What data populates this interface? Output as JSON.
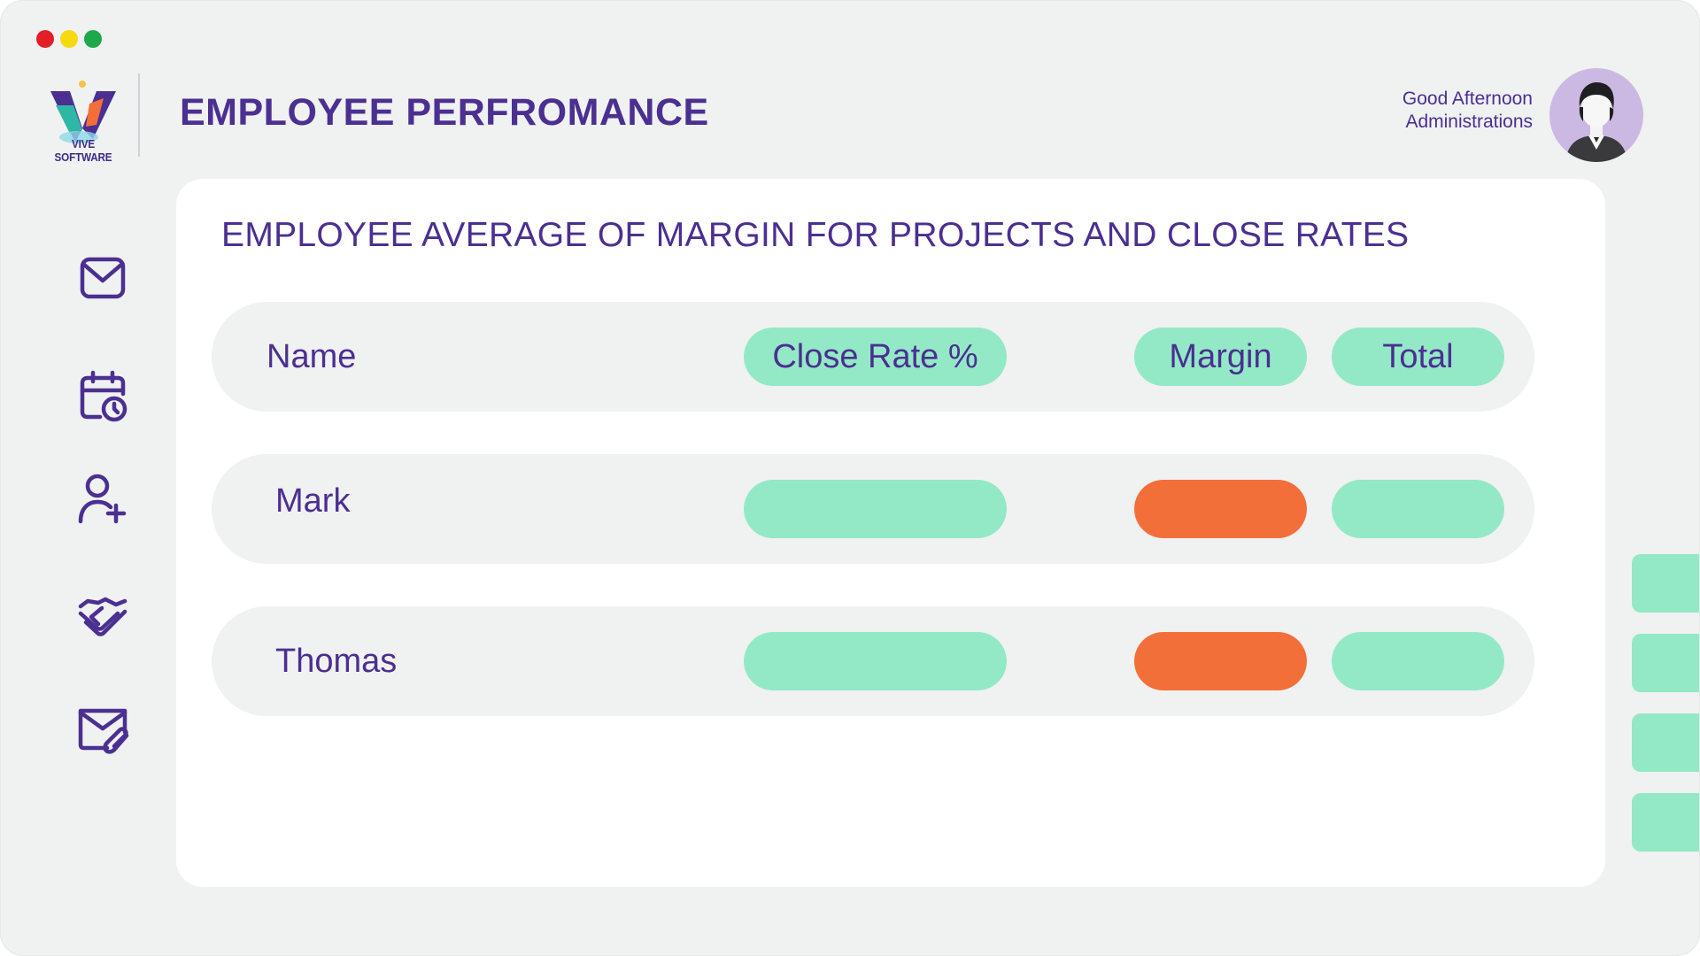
{
  "window_controls": {
    "colors": {
      "close": "#e21f26",
      "minimize": "#f6d90f",
      "maximize": "#1da94a"
    }
  },
  "brand": {
    "name": "VIVE SOFTWARE"
  },
  "header": {
    "title": "EMPLOYEE PERFROMANCE",
    "greeting_line1": "Good Afternoon",
    "greeting_line2": "Administrations"
  },
  "sidebar": {
    "items": [
      {
        "icon": "mail-icon"
      },
      {
        "icon": "calendar-clock-icon"
      },
      {
        "icon": "add-user-icon"
      },
      {
        "icon": "handshake-icon"
      },
      {
        "icon": "mail-attachment-icon"
      }
    ]
  },
  "panel": {
    "title": "EMPLOYEE AVERAGE OF MARGIN FOR PROJECTS AND CLOSE RATES",
    "columns": {
      "name": "Name",
      "close_rate": "Close Rate %",
      "margin": "Margin",
      "total": "Total"
    },
    "rows": [
      {
        "name": "Mark",
        "close_rate": "",
        "margin": "",
        "total": ""
      },
      {
        "name": "Thomas",
        "close_rate": "",
        "margin": "",
        "total": ""
      }
    ]
  },
  "colors": {
    "accent_text": "#4b2f91",
    "mint": "#93e9c6",
    "orange": "#f36f3a",
    "panel_bg": "#ffffff",
    "window_bg": "#f0f1f1"
  }
}
